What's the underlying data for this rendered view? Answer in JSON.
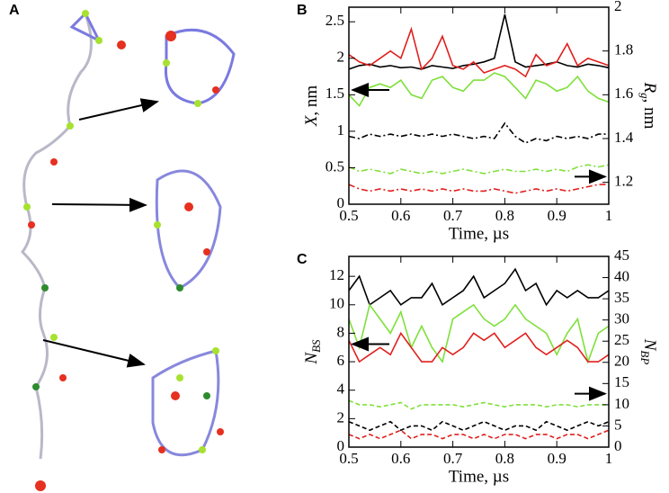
{
  "panel_a": {
    "label": "A"
  },
  "chart_data": [
    {
      "type": "line",
      "panel": "B",
      "xlabel": "Time, µs",
      "ylabel": {
        "main": "X",
        "unit": ", nm"
      },
      "y2label": {
        "main": "R",
        "sub": "g",
        "unit": ", nm"
      },
      "x": [
        0.5,
        0.52,
        0.54,
        0.56,
        0.58,
        0.6,
        0.62,
        0.64,
        0.66,
        0.68,
        0.7,
        0.72,
        0.74,
        0.76,
        0.78,
        0.8,
        0.82,
        0.84,
        0.86,
        0.88,
        0.9,
        0.92,
        0.94,
        0.96,
        0.98,
        1.0
      ],
      "xlim": [
        0.5,
        1
      ],
      "xticks": [
        0.5,
        0.6,
        0.7,
        0.8,
        0.9,
        1
      ],
      "ylim": [
        0,
        2.7
      ],
      "yticks": [
        0,
        0.5,
        1,
        1.5,
        2,
        2.5
      ],
      "y2lim": [
        1.1,
        2.0
      ],
      "y2ticks": [
        1.2,
        1.4,
        1.6,
        1.8,
        2
      ],
      "series": [
        {
          "color": "#000000",
          "style": "solid",
          "axis": "y",
          "values": [
            1.85,
            1.9,
            1.92,
            1.88,
            1.9,
            1.87,
            1.88,
            1.85,
            1.9,
            1.88,
            1.86,
            1.9,
            1.92,
            1.95,
            2.0,
            2.6,
            1.95,
            1.88,
            1.9,
            1.92,
            1.95,
            1.9,
            1.88,
            1.92,
            1.9,
            1.87
          ]
        },
        {
          "color": "#e0201e",
          "style": "solid",
          "axis": "y",
          "values": [
            2.05,
            1.95,
            1.9,
            2.0,
            2.1,
            2.0,
            2.4,
            1.85,
            2.0,
            2.3,
            1.9,
            1.85,
            1.95,
            1.8,
            1.85,
            1.9,
            1.85,
            1.75,
            2.05,
            1.9,
            1.95,
            2.2,
            1.9,
            2.0,
            1.95,
            1.9
          ]
        },
        {
          "color": "#7ee03a",
          "style": "solid",
          "axis": "y",
          "values": [
            1.5,
            1.35,
            1.6,
            1.65,
            1.6,
            1.7,
            1.5,
            1.45,
            1.7,
            1.75,
            1.6,
            1.55,
            1.7,
            1.7,
            1.8,
            1.75,
            1.6,
            1.45,
            1.7,
            1.65,
            1.55,
            1.6,
            1.75,
            1.55,
            1.45,
            1.4
          ]
        },
        {
          "color": "#000000",
          "style": "dashdot",
          "axis": "y2",
          "values": [
            1.41,
            1.4,
            1.42,
            1.41,
            1.42,
            1.41,
            1.42,
            1.41,
            1.42,
            1.41,
            1.42,
            1.41,
            1.4,
            1.41,
            1.4,
            1.47,
            1.41,
            1.38,
            1.4,
            1.39,
            1.41,
            1.4,
            1.41,
            1.4,
            1.42,
            1.42
          ]
        },
        {
          "color": "#7ee03a",
          "style": "dashdot",
          "axis": "y2",
          "values": [
            1.27,
            1.25,
            1.26,
            1.25,
            1.24,
            1.26,
            1.25,
            1.24,
            1.25,
            1.24,
            1.25,
            1.26,
            1.25,
            1.24,
            1.25,
            1.26,
            1.25,
            1.25,
            1.26,
            1.25,
            1.26,
            1.25,
            1.27,
            1.28,
            1.27,
            1.28
          ]
        },
        {
          "color": "#e0201e",
          "style": "dashdot",
          "axis": "y2",
          "values": [
            1.19,
            1.17,
            1.16,
            1.17,
            1.16,
            1.17,
            1.16,
            1.17,
            1.16,
            1.17,
            1.16,
            1.17,
            1.16,
            1.16,
            1.17,
            1.16,
            1.15,
            1.16,
            1.17,
            1.16,
            1.17,
            1.16,
            1.17,
            1.18,
            1.19,
            1.19
          ]
        }
      ]
    },
    {
      "type": "line",
      "panel": "C",
      "xlabel": "Time, µs",
      "ylabel": {
        "main": "N",
        "sub": "BS"
      },
      "y2label": {
        "main": "N",
        "sub": "BP"
      },
      "x": [
        0.5,
        0.52,
        0.54,
        0.56,
        0.58,
        0.6,
        0.62,
        0.64,
        0.66,
        0.68,
        0.7,
        0.72,
        0.74,
        0.76,
        0.78,
        0.8,
        0.82,
        0.84,
        0.86,
        0.88,
        0.9,
        0.92,
        0.94,
        0.96,
        0.98,
        1.0
      ],
      "xlim": [
        0.5,
        1
      ],
      "xticks": [
        0.5,
        0.6,
        0.7,
        0.8,
        0.9,
        1
      ],
      "ylim": [
        0,
        13.4
      ],
      "yticks": [
        0,
        2,
        4,
        6,
        8,
        10,
        12
      ],
      "y2lim": [
        0,
        45
      ],
      "y2ticks": [
        0,
        5,
        10,
        15,
        20,
        25,
        30,
        35,
        40,
        45
      ],
      "series": [
        {
          "color": "#000000",
          "style": "solid",
          "axis": "y",
          "values": [
            11,
            12,
            10,
            10.5,
            11,
            10,
            10.5,
            10.5,
            11.5,
            10,
            10.5,
            11,
            12,
            10.5,
            11,
            11.5,
            12.5,
            11,
            11.5,
            10,
            11,
            10.5,
            11,
            10.5,
            10.5,
            11
          ]
        },
        {
          "color": "#7ee03a",
          "style": "solid",
          "axis": "y",
          "values": [
            9,
            7,
            10,
            9,
            8,
            9.5,
            7,
            8.5,
            7,
            6,
            9,
            9.5,
            10,
            9,
            8.5,
            9,
            10,
            9,
            8.5,
            8,
            6.5,
            8,
            9,
            6,
            8,
            8.5
          ]
        },
        {
          "color": "#e0201e",
          "style": "solid",
          "axis": "y",
          "values": [
            7.5,
            6,
            6.5,
            7,
            6.5,
            8,
            7,
            6,
            6,
            7,
            6.5,
            7,
            8,
            7.5,
            8,
            7,
            7.5,
            8,
            7,
            6.5,
            7,
            7.5,
            7,
            6,
            6,
            6.5
          ]
        },
        {
          "color": "#7ee03a",
          "style": "dashed",
          "axis": "y2",
          "values": [
            11,
            10,
            10,
            9.5,
            10,
            10.5,
            9,
            10,
            10,
            10,
            10,
            9.5,
            10,
            10.5,
            10,
            9.5,
            10,
            10,
            10,
            9.5,
            10,
            10,
            9.5,
            10,
            10,
            10
          ]
        },
        {
          "color": "#000000",
          "style": "dashed",
          "axis": "y2",
          "values": [
            6,
            5,
            4,
            5,
            6,
            4,
            5,
            5,
            4,
            6,
            5,
            4,
            5,
            6,
            5,
            4,
            5,
            5,
            4,
            6,
            5,
            4,
            5,
            6,
            5,
            6
          ]
        },
        {
          "color": "#e0201e",
          "style": "dashed",
          "axis": "y2",
          "values": [
            3,
            2,
            3,
            2,
            3,
            4,
            2,
            3,
            3,
            2,
            3,
            3,
            2,
            3,
            2,
            3,
            3,
            2,
            3,
            3,
            2,
            3,
            3,
            2,
            3,
            4
          ]
        }
      ]
    }
  ]
}
